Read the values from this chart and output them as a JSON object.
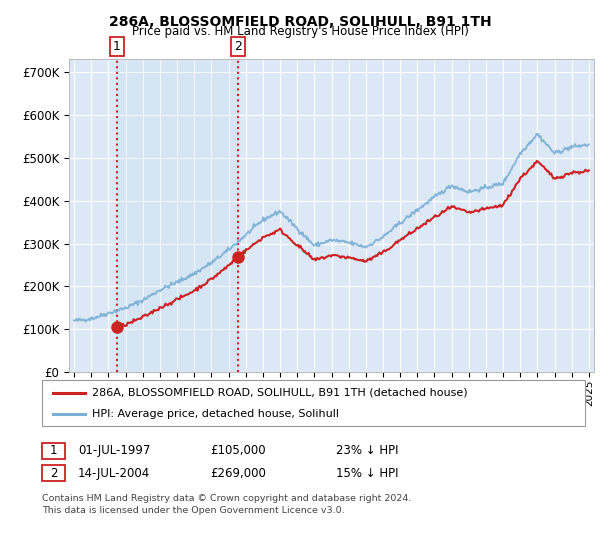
{
  "title1": "286A, BLOSSOMFIELD ROAD, SOLIHULL, B91 1TH",
  "title2": "Price paid vs. HM Land Registry's House Price Index (HPI)",
  "ylabel_vals": [
    "£0",
    "£100K",
    "£200K",
    "£300K",
    "£400K",
    "£500K",
    "£600K",
    "£700K"
  ],
  "ylim": [
    0,
    730000
  ],
  "sale1_date": 1997.5,
  "sale1_price": 105000,
  "sale2_date": 2004.54,
  "sale2_price": 269000,
  "legend_line1": "286A, BLOSSOMFIELD ROAD, SOLIHULL, B91 1TH (detached house)",
  "legend_line2": "HPI: Average price, detached house, Solihull",
  "hpi_color": "#7aafd4",
  "price_color": "#cc2222",
  "bg_color": "#dce8f5",
  "grid_color": "#ffffff",
  "sale_vline_color": "#cc2222",
  "xlim_start": 1994.7,
  "xlim_end": 2025.3,
  "hpi_anchors_x": [
    1995,
    1996,
    1997,
    1998,
    1999,
    2000,
    2001,
    2002,
    2003,
    2004,
    2005,
    2006,
    2007,
    2008,
    2009,
    2010,
    2011,
    2012,
    2013,
    2014,
    2015,
    2016,
    2017,
    2018,
    2019,
    2020,
    2021,
    2022,
    2023,
    2024,
    2025
  ],
  "hpi_anchors_y": [
    120000,
    125000,
    138000,
    150000,
    168000,
    192000,
    210000,
    230000,
    255000,
    285000,
    320000,
    355000,
    375000,
    335000,
    295000,
    308000,
    302000,
    292000,
    315000,
    348000,
    378000,
    408000,
    435000,
    420000,
    430000,
    440000,
    510000,
    555000,
    510000,
    525000,
    530000
  ],
  "sale1_scale": 0.7609,
  "sale2_scale": 0.9439,
  "footer": "Contains HM Land Registry data © Crown copyright and database right 2024.\nThis data is licensed under the Open Government Licence v3.0."
}
